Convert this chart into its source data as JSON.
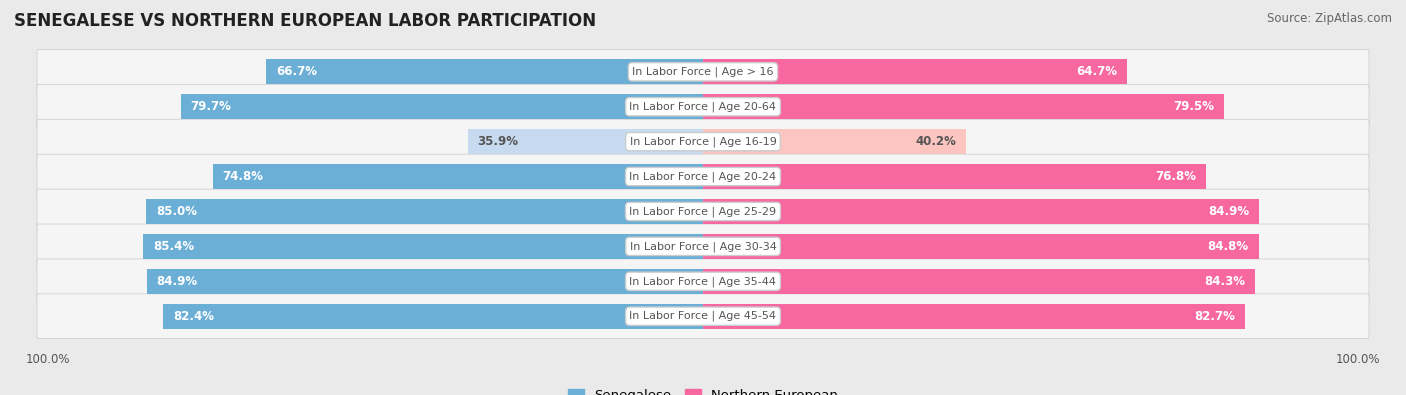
{
  "title": "SENEGALESE VS NORTHERN EUROPEAN LABOR PARTICIPATION",
  "source": "Source: ZipAtlas.com",
  "categories": [
    "In Labor Force | Age > 16",
    "In Labor Force | Age 20-64",
    "In Labor Force | Age 16-19",
    "In Labor Force | Age 20-24",
    "In Labor Force | Age 25-29",
    "In Labor Force | Age 30-34",
    "In Labor Force | Age 35-44",
    "In Labor Force | Age 45-54"
  ],
  "senegalese_values": [
    66.7,
    79.7,
    35.9,
    74.8,
    85.0,
    85.4,
    84.9,
    82.4
  ],
  "northern_values": [
    64.7,
    79.5,
    40.2,
    76.8,
    84.9,
    84.8,
    84.3,
    82.7
  ],
  "senegalese_color_strong": "#6baed6",
  "senegalese_color_light": "#c6dbef",
  "northern_color_strong": "#f768a1",
  "northern_color_light": "#fcc5c0",
  "background_color": "#eaeaea",
  "row_bg_color": "#f5f5f5",
  "row_border_color": "#d0d0d0",
  "label_color_dark": "#555555",
  "label_color_white": "#ffffff",
  "title_fontsize": 12,
  "source_fontsize": 8.5,
  "bar_label_fontsize": 8.5,
  "category_fontsize": 8,
  "legend_fontsize": 9.5,
  "axis_label_fontsize": 8.5,
  "max_value": 100.0,
  "bar_height": 0.72,
  "light_rows": [
    2
  ]
}
